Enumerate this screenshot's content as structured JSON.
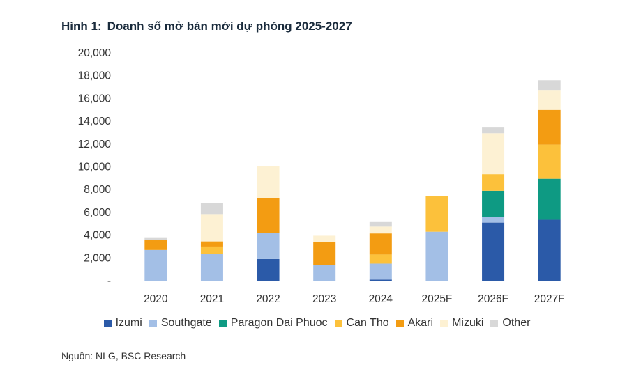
{
  "header": {
    "figure_number": "Hình 1:",
    "title": "Doanh số mở bán mới dự phóng 2025-2027"
  },
  "source": "Nguồn: NLG, BSC Research",
  "chart_data": {
    "type": "bar",
    "stacked": true,
    "title": "Doanh số mở bán mới dự phóng 2025-2027",
    "xlabel": "",
    "ylabel": "",
    "ylim": [
      0,
      20000
    ],
    "yticks": [
      0,
      2000,
      4000,
      6000,
      8000,
      10000,
      12000,
      14000,
      16000,
      18000,
      20000
    ],
    "ytick_labels": [
      "-",
      "2,000",
      "4,000",
      "6,000",
      "8,000",
      "10,000",
      "12,000",
      "14,000",
      "16,000",
      "18,000",
      "20,000"
    ],
    "grid": false,
    "legend_position": "bottom",
    "categories": [
      "2020",
      "2021",
      "2022",
      "2023",
      "2024",
      "2025F",
      "2026F",
      "2027F"
    ],
    "series": [
      {
        "name": "Izumi",
        "color": "#2b5aa8",
        "values": [
          0,
          0,
          1900,
          0,
          100,
          0,
          5100,
          5350
        ]
      },
      {
        "name": "Southgate",
        "color": "#a3bfe6",
        "values": [
          2700,
          2350,
          2300,
          1400,
          1400,
          4300,
          500,
          0
        ]
      },
      {
        "name": "Paragon Dai Phuoc",
        "color": "#0e9a83",
        "values": [
          0,
          0,
          0,
          0,
          0,
          0,
          2300,
          3600
        ]
      },
      {
        "name": "Can Tho",
        "color": "#fcc13b",
        "values": [
          0,
          650,
          0,
          0,
          800,
          3100,
          1450,
          3000
        ]
      },
      {
        "name": "Akari",
        "color": "#f39c12",
        "values": [
          850,
          450,
          3050,
          2000,
          1850,
          0,
          0,
          3050
        ]
      },
      {
        "name": "Mizuki",
        "color": "#fdf1d3",
        "values": [
          0,
          2400,
          2800,
          550,
          600,
          0,
          3600,
          1750
        ]
      },
      {
        "name": "Other",
        "color": "#d8d8d8",
        "values": [
          200,
          950,
          0,
          0,
          400,
          0,
          500,
          850
        ]
      }
    ]
  }
}
